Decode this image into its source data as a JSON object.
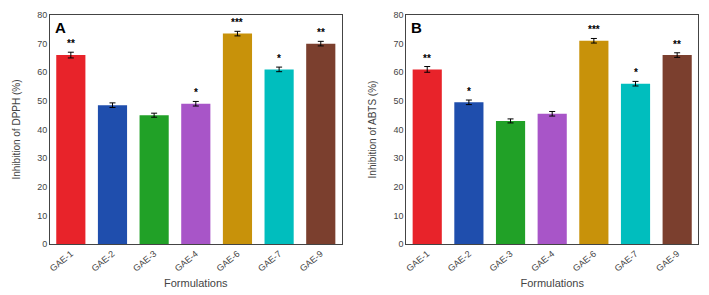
{
  "chart_data": [
    {
      "type": "bar",
      "title": "A",
      "categories": [
        "GAE-1",
        "GAE-2",
        "GAE-3",
        "GAE-4",
        "GAE-6",
        "GAE-7",
        "GAE-9"
      ],
      "values": [
        66.0,
        48.5,
        45.0,
        49.0,
        73.5,
        61.0,
        70.0
      ],
      "errors": [
        1.0,
        0.8,
        0.7,
        0.8,
        0.8,
        0.8,
        0.8
      ],
      "colors": [
        "#E8232A",
        "#1F4EAD",
        "#21A127",
        "#A855C8",
        "#C8920A",
        "#00BEBE",
        "#7B3F2E"
      ],
      "annotations": [
        {
          "category": "GAE-1",
          "text": "**"
        },
        {
          "category": "GAE-4",
          "text": "*"
        },
        {
          "category": "GAE-6",
          "text": "***"
        },
        {
          "category": "GAE-7",
          "text": "*"
        },
        {
          "category": "GAE-9",
          "text": "**"
        }
      ],
      "xlabel": "Formulations",
      "ylabel": "Inhibition of DPPH (%)",
      "ylim": [
        0,
        80
      ],
      "yticks": [
        0,
        10,
        20,
        30,
        40,
        50,
        60,
        70,
        80
      ],
      "grid": false
    },
    {
      "type": "bar",
      "title": "B",
      "categories": [
        "GAE-1",
        "GAE-2",
        "GAE-3",
        "GAE-4",
        "GAE-6",
        "GAE-7",
        "GAE-9"
      ],
      "values": [
        61.0,
        49.5,
        43.0,
        45.5,
        71.0,
        56.0,
        66.0
      ],
      "errors": [
        1.0,
        0.8,
        0.7,
        0.8,
        0.8,
        0.8,
        0.8
      ],
      "colors": [
        "#E8232A",
        "#1F4EAD",
        "#21A127",
        "#A855C8",
        "#C8920A",
        "#00BEBE",
        "#7B3F2E"
      ],
      "annotations": [
        {
          "category": "GAE-1",
          "text": "**"
        },
        {
          "category": "GAE-2",
          "text": "*"
        },
        {
          "category": "GAE-6",
          "text": "***"
        },
        {
          "category": "GAE-7",
          "text": "*"
        },
        {
          "category": "GAE-9",
          "text": "**"
        }
      ],
      "xlabel": "Formulations",
      "ylabel": "Inhibition of ABTS (%)",
      "ylim": [
        0,
        80
      ],
      "yticks": [
        0,
        10,
        20,
        30,
        40,
        50,
        60,
        70,
        80
      ],
      "grid": false
    }
  ]
}
